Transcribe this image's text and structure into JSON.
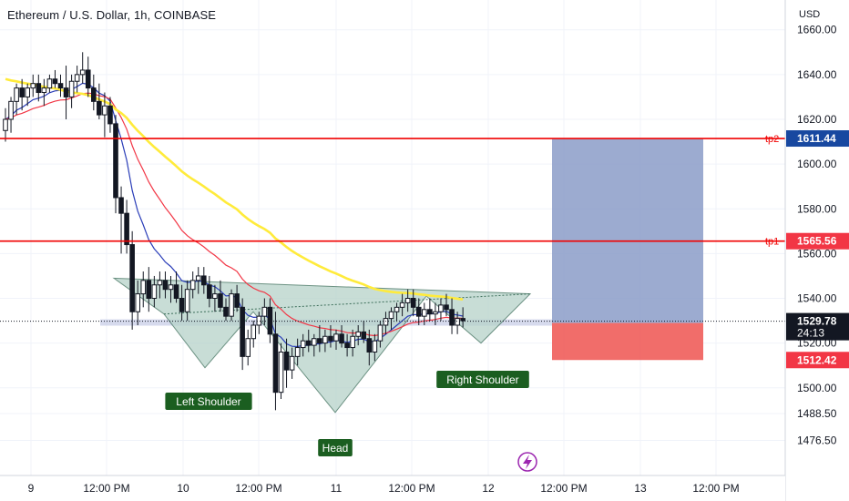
{
  "header": {
    "title": "Ethereum / U.S. Dollar, 1h, COINBASE"
  },
  "axis": {
    "currency": "USD"
  },
  "colors": {
    "up": "#ffffff",
    "down": "#131722",
    "ema_fast": "#2a3db8",
    "ema_mid": "#f23645",
    "ema_slow": "#ffeb3b",
    "level": "#f00000",
    "target_zone": "#8b9cc8",
    "stop_zone": "#ef5350",
    "pattern_fill": "#b6d2c9",
    "pattern_line": "#3c6e5a",
    "label_bg": "#1b5e20",
    "accent": "#9c27b0"
  },
  "icons": {
    "alert": "lightning-icon"
  },
  "countdown": "24:13",
  "chart_data": {
    "type": "candlestick",
    "title": "Ethereum / U.S. Dollar, 1h, COINBASE",
    "ylabel": "USD",
    "ylim": [
      1471,
      1666
    ],
    "y_ticks": [
      "1660.00",
      "1640.00",
      "1620.00",
      "1600.00",
      "1580.00",
      "1560.00",
      "1540.00",
      "1520.00",
      "1500.00",
      "1488.50",
      "1476.50"
    ],
    "x_ticks": [
      "9",
      "12:00 PM",
      "10",
      "12:00 PM",
      "11",
      "12:00 PM",
      "12",
      "12:00 PM",
      "13",
      "12:00 PM"
    ],
    "levels": [
      {
        "label": "tp2",
        "price": 1611.44,
        "price_label": "1611.44"
      },
      {
        "label": "tp1",
        "price": 1565.56,
        "price_label": "1565.56"
      },
      {
        "label": "",
        "price": 1512.42,
        "price_label": "1512.42"
      }
    ],
    "last_price": {
      "value": 1529.78,
      "label": "1529.78"
    },
    "pattern": {
      "type": "inverse head and shoulders",
      "labels": [
        "Left Shoulder",
        "Head",
        "Right Shoulder"
      ],
      "left_shoulder_low": 1509,
      "head_low": 1489,
      "right_shoulder_low": 1520,
      "neckline": [
        1534,
        1542
      ]
    },
    "position": {
      "entry": 1529,
      "target": 1611.44,
      "stop": 1512.42
    },
    "series": [
      {
        "type": "ema",
        "role": "fast",
        "color": "#2a3db8"
      },
      {
        "type": "ema",
        "role": "medium",
        "color": "#f23645"
      },
      {
        "type": "ema",
        "role": "slow",
        "color": "#ffeb3b"
      }
    ],
    "candles": [
      [
        1615,
        1625,
        1610,
        1620
      ],
      [
        1620,
        1630,
        1614,
        1628
      ],
      [
        1628,
        1636,
        1622,
        1634
      ],
      [
        1634,
        1638,
        1624,
        1630
      ],
      [
        1630,
        1636,
        1626,
        1634
      ],
      [
        1634,
        1640,
        1630,
        1636
      ],
      [
        1636,
        1640,
        1628,
        1632
      ],
      [
        1632,
        1638,
        1626,
        1634
      ],
      [
        1634,
        1640,
        1632,
        1638
      ],
      [
        1638,
        1642,
        1634,
        1636
      ],
      [
        1636,
        1640,
        1630,
        1634
      ],
      [
        1634,
        1644,
        1620,
        1630
      ],
      [
        1630,
        1640,
        1625,
        1637
      ],
      [
        1637,
        1644,
        1632,
        1640
      ],
      [
        1640,
        1650,
        1636,
        1642
      ],
      [
        1642,
        1648,
        1630,
        1634
      ],
      [
        1634,
        1640,
        1624,
        1628
      ],
      [
        1628,
        1636,
        1620,
        1622
      ],
      [
        1622,
        1632,
        1612,
        1626
      ],
      [
        1626,
        1630,
        1614,
        1618
      ],
      [
        1618,
        1622,
        1578,
        1585
      ],
      [
        1585,
        1590,
        1560,
        1578
      ],
      [
        1578,
        1584,
        1560,
        1564
      ],
      [
        1564,
        1570,
        1526,
        1534
      ],
      [
        1534,
        1548,
        1528,
        1542
      ],
      [
        1542,
        1552,
        1536,
        1548
      ],
      [
        1548,
        1554,
        1534,
        1540
      ],
      [
        1540,
        1550,
        1536,
        1546
      ],
      [
        1546,
        1552,
        1540,
        1548
      ],
      [
        1548,
        1552,
        1540,
        1544
      ],
      [
        1544,
        1550,
        1538,
        1546
      ],
      [
        1546,
        1552,
        1538,
        1540
      ],
      [
        1540,
        1546,
        1530,
        1534
      ],
      [
        1534,
        1548,
        1530,
        1544
      ],
      [
        1544,
        1552,
        1540,
        1548
      ],
      [
        1548,
        1554,
        1542,
        1550
      ],
      [
        1550,
        1554,
        1542,
        1546
      ],
      [
        1546,
        1550,
        1536,
        1540
      ],
      [
        1540,
        1546,
        1534,
        1542
      ],
      [
        1542,
        1548,
        1534,
        1536
      ],
      [
        1536,
        1540,
        1530,
        1532
      ],
      [
        1532,
        1544,
        1530,
        1542
      ],
      [
        1542,
        1546,
        1534,
        1536
      ],
      [
        1536,
        1540,
        1508,
        1514
      ],
      [
        1514,
        1526,
        1510,
        1522
      ],
      [
        1522,
        1530,
        1518,
        1528
      ],
      [
        1528,
        1534,
        1524,
        1532
      ],
      [
        1532,
        1540,
        1528,
        1536
      ],
      [
        1536,
        1540,
        1520,
        1524
      ],
      [
        1524,
        1534,
        1490,
        1498
      ],
      [
        1498,
        1520,
        1495,
        1516
      ],
      [
        1516,
        1522,
        1500,
        1508
      ],
      [
        1508,
        1518,
        1504,
        1514
      ],
      [
        1514,
        1522,
        1510,
        1518
      ],
      [
        1518,
        1524,
        1514,
        1521
      ],
      [
        1521,
        1526,
        1516,
        1519
      ],
      [
        1519,
        1524,
        1514,
        1522
      ],
      [
        1522,
        1528,
        1516,
        1520
      ],
      [
        1520,
        1526,
        1516,
        1523
      ],
      [
        1523,
        1528,
        1518,
        1521
      ],
      [
        1521,
        1526,
        1517,
        1524
      ],
      [
        1524,
        1528,
        1518,
        1520
      ],
      [
        1520,
        1524,
        1514,
        1518
      ],
      [
        1518,
        1526,
        1514,
        1523
      ],
      [
        1523,
        1528,
        1519,
        1525
      ],
      [
        1525,
        1530,
        1520,
        1522
      ],
      [
        1522,
        1526,
        1510,
        1516
      ],
      [
        1516,
        1524,
        1512,
        1521
      ],
      [
        1521,
        1530,
        1518,
        1528
      ],
      [
        1528,
        1534,
        1524,
        1531
      ],
      [
        1531,
        1536,
        1526,
        1534
      ],
      [
        1534,
        1538,
        1530,
        1536
      ],
      [
        1536,
        1542,
        1532,
        1538
      ],
      [
        1538,
        1544,
        1534,
        1540
      ],
      [
        1540,
        1544,
        1532,
        1536
      ],
      [
        1536,
        1540,
        1528,
        1532
      ],
      [
        1532,
        1538,
        1528,
        1535
      ],
      [
        1535,
        1540,
        1530,
        1533
      ],
      [
        1533,
        1538,
        1528,
        1534
      ],
      [
        1534,
        1540,
        1530,
        1537
      ],
      [
        1537,
        1542,
        1532,
        1535
      ],
      [
        1535,
        1540,
        1524,
        1528
      ],
      [
        1528,
        1534,
        1524,
        1531
      ],
      [
        1531,
        1536,
        1527,
        1530
      ]
    ]
  }
}
